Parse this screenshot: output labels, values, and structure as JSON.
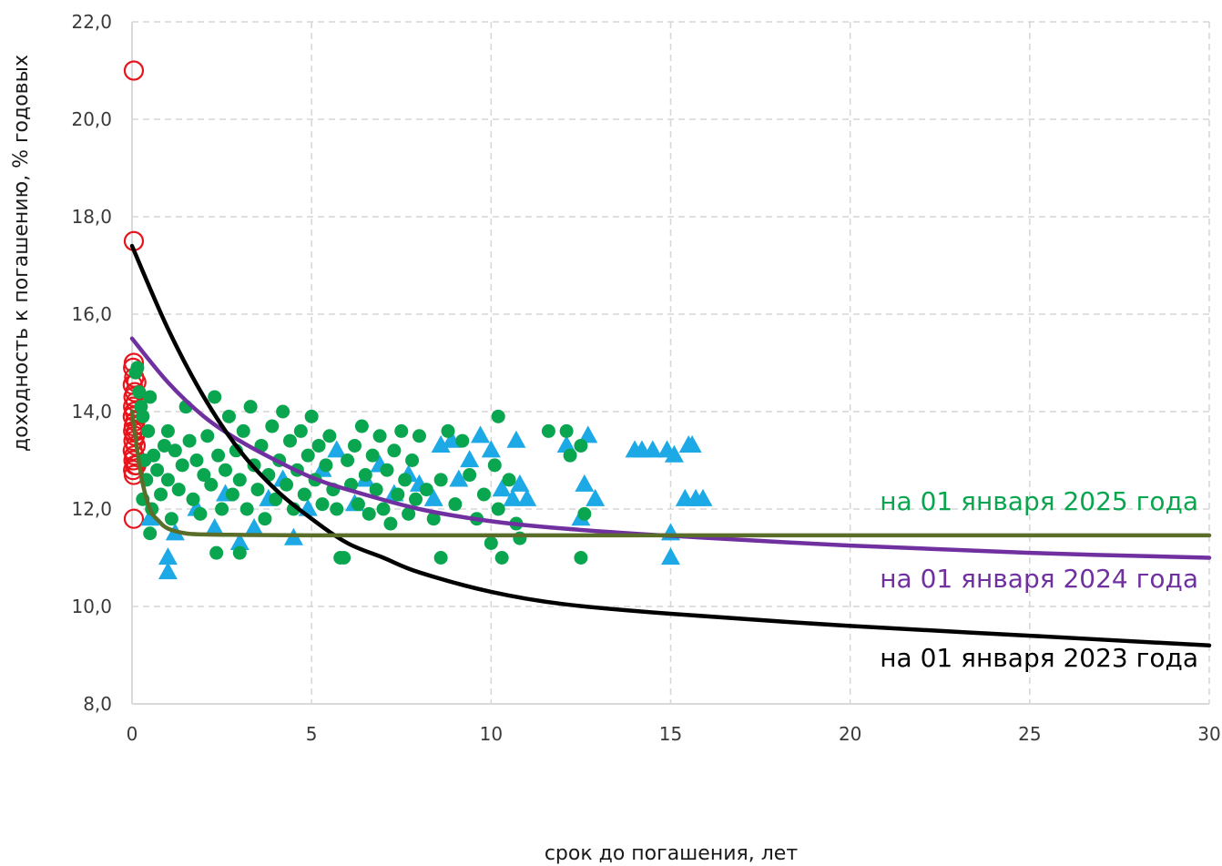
{
  "chart_data": {
    "type": "scatter",
    "title": "",
    "xlabel": "срок до погашения, лет",
    "ylabel": "доходность к погашению, % годовых",
    "xlim": [
      0,
      30
    ],
    "ylim": [
      8.0,
      22.0
    ],
    "x_ticks": [
      "0",
      "5",
      "10",
      "15",
      "20",
      "25",
      "30"
    ],
    "y_ticks": [
      "8,0",
      "10,0",
      "12,0",
      "14,0",
      "16,0",
      "18,0",
      "20,0",
      "22,0"
    ],
    "grid": true,
    "colors": {
      "circles_red": "#e8141c",
      "triangles_blue": "#1ca9e6",
      "dots_green": "#0aa64f",
      "curve_2023": "#000000",
      "curve_2024": "#7030a0",
      "curve_2025": "#5a6e2a",
      "label_2023": "#000000",
      "label_2024": "#7030a0",
      "label_2025": "#0aa64f"
    },
    "curves": [
      {
        "label": "на 01 января 2023 года",
        "color_key": "curve_2023",
        "points": [
          [
            0,
            17.4
          ],
          [
            1,
            15.7
          ],
          [
            2,
            14.3
          ],
          [
            3,
            13.2
          ],
          [
            4,
            12.4
          ],
          [
            5,
            11.8
          ],
          [
            6,
            11.3
          ],
          [
            7,
            11.0
          ],
          [
            8,
            10.7
          ],
          [
            10,
            10.3
          ],
          [
            12,
            10.05
          ],
          [
            15,
            9.85
          ],
          [
            20,
            9.6
          ],
          [
            25,
            9.4
          ],
          [
            30,
            9.2
          ]
        ]
      },
      {
        "label": "на 01 января 2024 года",
        "color_key": "curve_2024",
        "points": [
          [
            0,
            15.5
          ],
          [
            1,
            14.6
          ],
          [
            2,
            13.9
          ],
          [
            3,
            13.4
          ],
          [
            4,
            13.0
          ],
          [
            5,
            12.65
          ],
          [
            6,
            12.4
          ],
          [
            8,
            12.0
          ],
          [
            10,
            11.75
          ],
          [
            12,
            11.6
          ],
          [
            15,
            11.45
          ],
          [
            20,
            11.25
          ],
          [
            25,
            11.1
          ],
          [
            30,
            11.0
          ]
        ]
      },
      {
        "label": "на 01 января 2025 года",
        "color_key": "curve_2025",
        "points": [
          [
            0,
            14.0
          ],
          [
            0.25,
            12.7
          ],
          [
            0.5,
            12.0
          ],
          [
            0.75,
            11.75
          ],
          [
            1,
            11.6
          ],
          [
            1.5,
            11.5
          ],
          [
            2,
            11.48
          ],
          [
            3,
            11.47
          ],
          [
            5,
            11.46
          ],
          [
            10,
            11.46
          ],
          [
            20,
            11.46
          ],
          [
            30,
            11.46
          ]
        ]
      }
    ],
    "series": [
      {
        "marker": "circle-open",
        "color_key": "circles_red",
        "points": [
          [
            0.05,
            21.0
          ],
          [
            0.05,
            17.5
          ],
          [
            0.05,
            15.0
          ],
          [
            0.05,
            11.8
          ],
          [
            0.03,
            14.9
          ],
          [
            0.06,
            14.7
          ],
          [
            0.02,
            14.55
          ],
          [
            0.08,
            14.4
          ],
          [
            0.04,
            14.3
          ],
          [
            0.1,
            14.2
          ],
          [
            0.03,
            14.1
          ],
          [
            0.07,
            14.0
          ],
          [
            0.02,
            13.9
          ],
          [
            0.09,
            13.8
          ],
          [
            0.05,
            13.7
          ],
          [
            0.03,
            13.6
          ],
          [
            0.08,
            13.5
          ],
          [
            0.04,
            13.4
          ],
          [
            0.1,
            13.3
          ],
          [
            0.02,
            13.2
          ],
          [
            0.06,
            13.1
          ],
          [
            0.04,
            13.0
          ],
          [
            0.08,
            12.9
          ],
          [
            0.03,
            12.8
          ],
          [
            0.05,
            12.7
          ],
          [
            0.12,
            14.6
          ],
          [
            0.12,
            13.6
          ],
          [
            0.12,
            12.9
          ]
        ]
      },
      {
        "marker": "triangle",
        "color_key": "triangles_blue",
        "points": [
          [
            0.5,
            11.8
          ],
          [
            1.0,
            10.7
          ],
          [
            1.0,
            11.0
          ],
          [
            1.2,
            11.5
          ],
          [
            1.8,
            12.0
          ],
          [
            2.3,
            11.6
          ],
          [
            2.6,
            12.3
          ],
          [
            3.0,
            11.3
          ],
          [
            3.4,
            11.6
          ],
          [
            3.8,
            12.2
          ],
          [
            4.2,
            12.6
          ],
          [
            4.5,
            11.4
          ],
          [
            4.9,
            12.0
          ],
          [
            5.3,
            12.8
          ],
          [
            5.7,
            13.2
          ],
          [
            6.2,
            12.1
          ],
          [
            6.5,
            12.6
          ],
          [
            6.9,
            12.9
          ],
          [
            7.3,
            12.3
          ],
          [
            7.7,
            12.7
          ],
          [
            8.0,
            12.5
          ],
          [
            8.4,
            12.2
          ],
          [
            8.6,
            13.3
          ],
          [
            8.9,
            13.4
          ],
          [
            9.1,
            12.6
          ],
          [
            9.4,
            13.0
          ],
          [
            9.7,
            13.5
          ],
          [
            10.0,
            13.2
          ],
          [
            10.3,
            12.4
          ],
          [
            10.6,
            12.2
          ],
          [
            10.7,
            13.4
          ],
          [
            10.8,
            12.5
          ],
          [
            11.0,
            12.2
          ],
          [
            12.1,
            13.3
          ],
          [
            12.5,
            11.8
          ],
          [
            12.6,
            12.5
          ],
          [
            12.7,
            13.5
          ],
          [
            12.9,
            12.2
          ],
          [
            14.0,
            13.2
          ],
          [
            14.2,
            13.2
          ],
          [
            14.5,
            13.2
          ],
          [
            14.9,
            13.2
          ],
          [
            15.0,
            11.5
          ],
          [
            15.0,
            11.0
          ],
          [
            15.1,
            13.1
          ],
          [
            15.4,
            12.2
          ],
          [
            15.5,
            13.3
          ],
          [
            15.6,
            13.3
          ],
          [
            15.7,
            12.2
          ],
          [
            15.9,
            12.2
          ]
        ]
      },
      {
        "marker": "dot",
        "color_key": "dots_green",
        "points": [
          [
            0.1,
            14.8
          ],
          [
            0.15,
            14.9
          ],
          [
            0.2,
            14.4
          ],
          [
            0.25,
            14.1
          ],
          [
            0.3,
            13.9
          ],
          [
            0.3,
            12.2
          ],
          [
            0.35,
            13.0
          ],
          [
            0.4,
            12.6
          ],
          [
            0.45,
            13.6
          ],
          [
            0.5,
            11.5
          ],
          [
            0.5,
            14.3
          ],
          [
            0.55,
            12.0
          ],
          [
            0.6,
            13.1
          ],
          [
            0.7,
            12.8
          ],
          [
            0.8,
            12.3
          ],
          [
            0.9,
            13.3
          ],
          [
            1.0,
            12.6
          ],
          [
            1.0,
            13.6
          ],
          [
            1.1,
            11.8
          ],
          [
            1.2,
            13.2
          ],
          [
            1.3,
            12.4
          ],
          [
            1.4,
            12.9
          ],
          [
            1.5,
            14.1
          ],
          [
            1.6,
            13.4
          ],
          [
            1.7,
            12.2
          ],
          [
            1.8,
            13.0
          ],
          [
            1.9,
            11.9
          ],
          [
            2.0,
            12.7
          ],
          [
            2.1,
            13.5
          ],
          [
            2.2,
            12.5
          ],
          [
            2.3,
            14.3
          ],
          [
            2.35,
            11.1
          ],
          [
            2.4,
            13.1
          ],
          [
            2.5,
            12.0
          ],
          [
            2.6,
            12.8
          ],
          [
            2.7,
            13.9
          ],
          [
            2.8,
            12.3
          ],
          [
            2.9,
            13.2
          ],
          [
            3.0,
            11.1
          ],
          [
            3.0,
            12.6
          ],
          [
            3.1,
            13.6
          ],
          [
            3.2,
            12.0
          ],
          [
            3.3,
            14.1
          ],
          [
            3.4,
            12.9
          ],
          [
            3.5,
            12.4
          ],
          [
            3.6,
            13.3
          ],
          [
            3.7,
            11.8
          ],
          [
            3.8,
            12.7
          ],
          [
            3.9,
            13.7
          ],
          [
            4.0,
            12.2
          ],
          [
            4.1,
            13.0
          ],
          [
            4.2,
            14.0
          ],
          [
            4.3,
            12.5
          ],
          [
            4.4,
            13.4
          ],
          [
            4.5,
            12.0
          ],
          [
            4.6,
            12.8
          ],
          [
            4.7,
            13.6
          ],
          [
            4.8,
            12.3
          ],
          [
            4.9,
            13.1
          ],
          [
            5.0,
            13.9
          ],
          [
            5.1,
            12.6
          ],
          [
            5.2,
            13.3
          ],
          [
            5.3,
            12.1
          ],
          [
            5.4,
            12.9
          ],
          [
            5.5,
            13.5
          ],
          [
            5.6,
            12.4
          ],
          [
            5.7,
            12.0
          ],
          [
            5.8,
            11.0
          ],
          [
            5.9,
            11.0
          ],
          [
            6.0,
            13.0
          ],
          [
            6.1,
            12.5
          ],
          [
            6.2,
            13.3
          ],
          [
            6.3,
            12.1
          ],
          [
            6.4,
            13.7
          ],
          [
            6.5,
            12.7
          ],
          [
            6.6,
            11.9
          ],
          [
            6.7,
            13.1
          ],
          [
            6.8,
            12.4
          ],
          [
            6.9,
            13.5
          ],
          [
            7.0,
            12.0
          ],
          [
            7.1,
            12.8
          ],
          [
            7.2,
            11.7
          ],
          [
            7.3,
            13.2
          ],
          [
            7.4,
            12.3
          ],
          [
            7.5,
            13.6
          ],
          [
            7.6,
            12.6
          ],
          [
            7.7,
            11.9
          ],
          [
            7.8,
            13.0
          ],
          [
            7.9,
            12.2
          ],
          [
            8.0,
            13.5
          ],
          [
            8.2,
            12.4
          ],
          [
            8.4,
            11.8
          ],
          [
            8.6,
            11.0
          ],
          [
            8.6,
            12.6
          ],
          [
            8.8,
            13.6
          ],
          [
            9.0,
            12.1
          ],
          [
            9.2,
            13.4
          ],
          [
            9.4,
            12.7
          ],
          [
            9.6,
            11.8
          ],
          [
            9.8,
            12.3
          ],
          [
            10.0,
            11.3
          ],
          [
            10.1,
            12.9
          ],
          [
            10.2,
            12.0
          ],
          [
            10.2,
            13.9
          ],
          [
            10.3,
            11.0
          ],
          [
            10.5,
            12.6
          ],
          [
            10.7,
            11.7
          ],
          [
            10.8,
            11.4
          ],
          [
            11.6,
            13.6
          ],
          [
            12.1,
            13.6
          ],
          [
            12.2,
            13.1
          ],
          [
            12.5,
            11.0
          ],
          [
            12.5,
            13.3
          ],
          [
            12.6,
            11.9
          ]
        ]
      }
    ]
  }
}
